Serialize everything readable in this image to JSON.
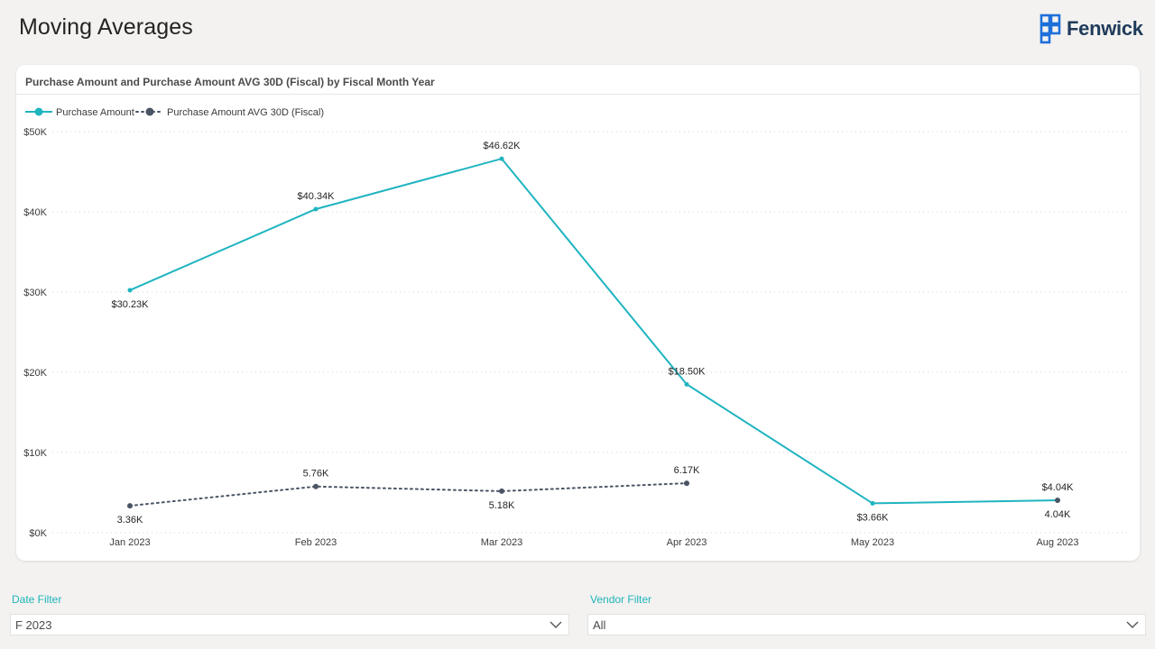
{
  "page": {
    "title": "Moving Averages",
    "brand": "Fenwick",
    "brand_color": "#1e6fd9"
  },
  "card": {
    "title": "Purchase Amount and Purchase Amount AVG 30D (Fiscal) by Fiscal Month Year"
  },
  "filters": {
    "date": {
      "label": "Date Filter",
      "value": "F 2023"
    },
    "vendor": {
      "label": "Vendor Filter",
      "value": "All"
    }
  },
  "chart_data": {
    "type": "line",
    "categories": [
      "Jan 2023",
      "Feb 2023",
      "Mar 2023",
      "Apr 2023",
      "May 2023",
      "Aug 2023"
    ],
    "ylim": [
      0,
      50000
    ],
    "yticks": [
      0,
      10000,
      20000,
      30000,
      40000,
      50000
    ],
    "ytick_labels": [
      "$0K",
      "$10K",
      "$20K",
      "$30K",
      "$40K",
      "$50K"
    ],
    "grid": true,
    "legend_position": "top-left",
    "series": [
      {
        "name": "Purchase Amount",
        "color": "#1fb4c0",
        "style": "solid",
        "values": [
          30230,
          40340,
          46620,
          18500,
          3660,
          4040
        ],
        "labels": [
          "$30.23K",
          "$40.34K",
          "$46.62K",
          "$18.50K",
          "$3.66K",
          "$4.04K"
        ],
        "label_pos": [
          "below",
          "above",
          "above",
          "above",
          "below",
          "above"
        ]
      },
      {
        "name": "Purchase Amount AVG 30D (Fiscal)",
        "color": "#4a5464",
        "style": "dotted",
        "values": [
          3360,
          5760,
          5180,
          6170,
          null,
          4040
        ],
        "labels": [
          "3.36K",
          "5.76K",
          "5.18K",
          "6.17K",
          "",
          "4.04K"
        ],
        "label_pos": [
          "below",
          "above",
          "below",
          "above",
          "below",
          "below"
        ]
      }
    ]
  }
}
